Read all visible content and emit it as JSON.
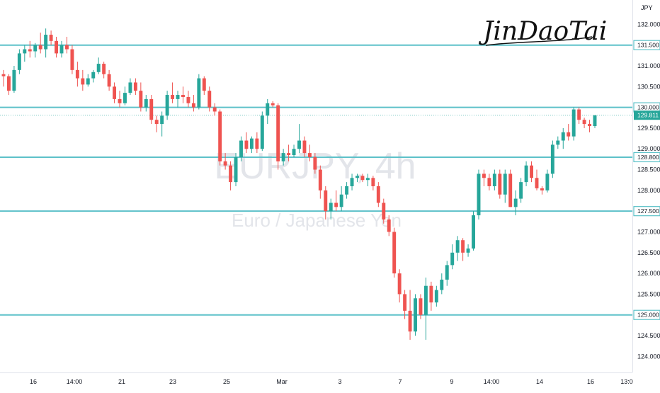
{
  "chart_data": {
    "type": "candlestick",
    "symbol": "EURJPY, 4h",
    "description": "Euro / Japanese Yen",
    "currency": "JPY",
    "signature": "JinDaoTai",
    "y_axis": {
      "ylim": [
        123.75,
        132.45
      ],
      "ticks": [
        "124.000",
        "124.500",
        "125.000",
        "125.500",
        "126.000",
        "126.500",
        "127.000",
        "127.500",
        "128.000",
        "128.500",
        "129.000",
        "129.500",
        "130.000",
        "130.500",
        "131.000",
        "131.500",
        "132.000"
      ]
    },
    "x_axis": {
      "labels": [
        "16",
        "14:00",
        "21",
        "23",
        "25",
        "Mar",
        "3",
        "7",
        "9",
        "14:00",
        "14",
        "16",
        "13:0"
      ]
    },
    "horizontal_levels": [
      {
        "value": 131.5,
        "label": "131.500",
        "color": "#5dc1c9"
      },
      {
        "value": 130.0,
        "label": "130.000",
        "color": "#5dc1c9"
      },
      {
        "value": 128.8,
        "label": "128.800",
        "color": "#5dc1c9"
      },
      {
        "value": 127.5,
        "label": "127.500",
        "color": "#5dc1c9"
      },
      {
        "value": 125.0,
        "label": "125.000",
        "color": "#5dc1c9"
      }
    ],
    "last_price": {
      "value": 129.811,
      "label": "129.811",
      "color": "#26a69a"
    },
    "colors": {
      "up": "#26a69a",
      "down": "#ef5350",
      "level": "#5dc1c9"
    },
    "candles_ohlc": [
      [
        130.8,
        130.9,
        130.5,
        130.75
      ],
      [
        130.75,
        130.8,
        130.3,
        130.4
      ],
      [
        130.4,
        131.0,
        130.35,
        130.9
      ],
      [
        130.9,
        131.4,
        130.8,
        131.3
      ],
      [
        131.3,
        131.5,
        131.1,
        131.4
      ],
      [
        131.4,
        131.6,
        131.2,
        131.35
      ],
      [
        131.35,
        131.55,
        131.2,
        131.5
      ],
      [
        131.5,
        131.8,
        131.3,
        131.4
      ],
      [
        131.4,
        131.9,
        131.2,
        131.75
      ],
      [
        131.75,
        131.85,
        131.5,
        131.6
      ],
      [
        131.6,
        131.7,
        131.2,
        131.3
      ],
      [
        131.3,
        131.6,
        131.2,
        131.5
      ],
      [
        131.5,
        131.7,
        131.3,
        131.4
      ],
      [
        131.4,
        131.5,
        130.8,
        130.9
      ],
      [
        130.9,
        131.1,
        130.5,
        130.7
      ],
      [
        130.7,
        130.9,
        130.4,
        130.55
      ],
      [
        130.55,
        130.8,
        130.5,
        130.7
      ],
      [
        130.7,
        130.9,
        130.6,
        130.85
      ],
      [
        130.85,
        131.2,
        130.8,
        131.05
      ],
      [
        131.05,
        131.1,
        130.7,
        130.8
      ],
      [
        130.8,
        130.9,
        130.4,
        130.5
      ],
      [
        130.5,
        130.6,
        130.1,
        130.2
      ],
      [
        130.2,
        130.4,
        130.0,
        130.1
      ],
      [
        130.1,
        130.5,
        130.05,
        130.35
      ],
      [
        130.35,
        130.7,
        130.3,
        130.6
      ],
      [
        130.6,
        130.7,
        130.3,
        130.4
      ],
      [
        130.4,
        130.6,
        129.9,
        130.0
      ],
      [
        130.0,
        130.3,
        129.9,
        130.2
      ],
      [
        130.2,
        130.3,
        129.6,
        129.7
      ],
      [
        129.7,
        129.8,
        129.4,
        129.6
      ],
      [
        129.6,
        129.9,
        129.3,
        129.8
      ],
      [
        129.8,
        130.4,
        129.7,
        130.3
      ],
      [
        130.3,
        130.6,
        130.1,
        130.2
      ],
      [
        130.2,
        130.4,
        130.0,
        130.3
      ],
      [
        130.3,
        130.5,
        130.1,
        130.25
      ],
      [
        130.25,
        130.4,
        130.0,
        130.1
      ],
      [
        130.1,
        130.3,
        129.9,
        130.0
      ],
      [
        130.0,
        130.8,
        129.95,
        130.7
      ],
      [
        130.7,
        130.75,
        130.3,
        130.4
      ],
      [
        130.4,
        130.5,
        129.9,
        130.0
      ],
      [
        130.0,
        130.1,
        129.8,
        129.9
      ],
      [
        129.9,
        129.95,
        128.6,
        128.7
      ],
      [
        128.7,
        128.9,
        128.5,
        128.6
      ],
      [
        128.6,
        128.7,
        128.0,
        128.2
      ],
      [
        128.2,
        128.9,
        128.1,
        128.8
      ],
      [
        128.8,
        129.3,
        128.7,
        129.2
      ],
      [
        129.2,
        129.4,
        128.9,
        129.0
      ],
      [
        129.0,
        129.3,
        128.9,
        129.25
      ],
      [
        129.25,
        129.4,
        128.9,
        129.0
      ],
      [
        129.0,
        129.9,
        128.95,
        129.8
      ],
      [
        129.8,
        130.2,
        129.6,
        130.1
      ],
      [
        130.1,
        130.15,
        130.0,
        130.05
      ],
      [
        130.05,
        130.1,
        128.5,
        128.7
      ],
      [
        128.7,
        129.0,
        128.6,
        128.9
      ],
      [
        128.9,
        129.1,
        128.7,
        128.85
      ],
      [
        128.85,
        129.1,
        128.8,
        129.0
      ],
      [
        129.0,
        129.6,
        128.9,
        129.2
      ],
      [
        129.2,
        129.3,
        128.8,
        128.9
      ],
      [
        128.9,
        129.1,
        128.7,
        128.8
      ],
      [
        128.8,
        128.9,
        128.4,
        128.5
      ],
      [
        128.5,
        128.6,
        127.8,
        128.0
      ],
      [
        128.0,
        128.1,
        127.3,
        127.5
      ],
      [
        127.5,
        127.8,
        127.3,
        127.7
      ],
      [
        127.7,
        128.0,
        127.5,
        127.6
      ],
      [
        127.6,
        128.1,
        127.5,
        127.9
      ],
      [
        127.9,
        128.2,
        127.8,
        128.1
      ],
      [
        128.1,
        128.4,
        128.0,
        128.3
      ],
      [
        128.3,
        128.4,
        128.2,
        128.35
      ],
      [
        128.35,
        128.4,
        128.2,
        128.25
      ],
      [
        128.25,
        128.4,
        128.1,
        128.3
      ],
      [
        128.3,
        128.35,
        128.0,
        128.1
      ],
      [
        128.1,
        128.2,
        127.6,
        127.7
      ],
      [
        127.7,
        127.8,
        127.2,
        127.3
      ],
      [
        127.3,
        127.4,
        126.9,
        127.0
      ],
      [
        127.0,
        127.1,
        125.9,
        126.0
      ],
      [
        126.0,
        126.1,
        125.3,
        125.5
      ],
      [
        125.5,
        125.6,
        124.9,
        125.1
      ],
      [
        125.1,
        125.6,
        124.4,
        124.6
      ],
      [
        124.6,
        125.5,
        124.5,
        125.4
      ],
      [
        125.4,
        125.5,
        124.9,
        125.0
      ],
      [
        125.0,
        125.9,
        124.4,
        125.7
      ],
      [
        125.7,
        125.8,
        125.1,
        125.3
      ],
      [
        125.3,
        125.7,
        125.2,
        125.6
      ],
      [
        125.6,
        126.0,
        125.5,
        125.85
      ],
      [
        125.85,
        126.3,
        125.7,
        126.2
      ],
      [
        126.2,
        126.7,
        126.1,
        126.5
      ],
      [
        126.5,
        126.9,
        126.3,
        126.8
      ],
      [
        126.8,
        126.85,
        126.3,
        126.5
      ],
      [
        126.5,
        126.7,
        126.4,
        126.6
      ],
      [
        126.6,
        127.5,
        126.55,
        127.4
      ],
      [
        127.4,
        128.5,
        127.3,
        128.4
      ],
      [
        128.4,
        128.5,
        128.1,
        128.3
      ],
      [
        128.3,
        128.4,
        128.0,
        128.1
      ],
      [
        128.1,
        128.5,
        128.0,
        128.4
      ],
      [
        128.4,
        128.5,
        127.8,
        127.9
      ],
      [
        127.9,
        128.5,
        127.7,
        128.4
      ],
      [
        128.4,
        128.5,
        127.6,
        127.6
      ],
      [
        127.6,
        128.0,
        127.4,
        127.8
      ],
      [
        127.8,
        128.3,
        127.7,
        128.2
      ],
      [
        128.2,
        128.7,
        128.1,
        128.6
      ],
      [
        128.6,
        128.7,
        128.2,
        128.3
      ],
      [
        128.3,
        128.5,
        128.0,
        128.05
      ],
      [
        128.05,
        128.1,
        127.9,
        128.0
      ],
      [
        128.0,
        128.5,
        127.95,
        128.4
      ],
      [
        128.4,
        129.2,
        128.3,
        129.1
      ],
      [
        129.1,
        129.3,
        129.0,
        129.2
      ],
      [
        129.2,
        129.5,
        129.0,
        129.4
      ],
      [
        129.4,
        129.6,
        129.2,
        129.3
      ],
      [
        129.3,
        130.0,
        129.2,
        129.95
      ],
      [
        129.95,
        130.0,
        129.6,
        129.7
      ],
      [
        129.7,
        129.75,
        129.5,
        129.6
      ],
      [
        129.6,
        129.7,
        129.4,
        129.55
      ],
      [
        129.55,
        129.8,
        129.5,
        129.81
      ]
    ]
  }
}
